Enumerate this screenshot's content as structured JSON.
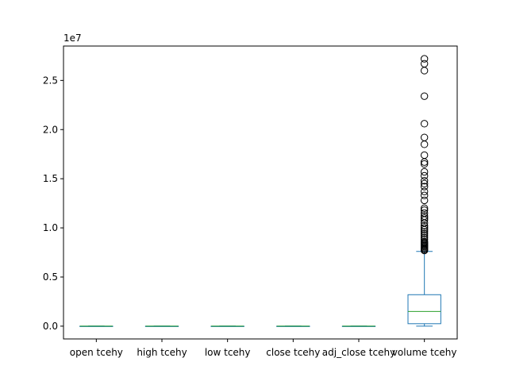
{
  "chart_data": {
    "type": "box",
    "title": "",
    "xlabel": "",
    "ylabel": "",
    "ylim": [
      -0.13,
      2.85
    ],
    "y_scale_label": "1e7",
    "y_ticks": [
      0.0,
      0.5,
      1.0,
      1.5,
      2.0,
      2.5
    ],
    "y_tick_labels": [
      "0.0",
      "0.5",
      "1.0",
      "1.5",
      "2.0",
      "2.5"
    ],
    "categories": [
      "open tcehy",
      "high tcehy",
      "low tcehy",
      "close tcehy",
      "adj_close tcehy",
      "volume tcehy"
    ],
    "series": [
      {
        "whislo": 0,
        "q1": 0,
        "median": 0,
        "q3": 0,
        "whishi": 0,
        "fliers": []
      },
      {
        "whislo": 0,
        "q1": 0,
        "median": 0,
        "q3": 0,
        "whishi": 0,
        "fliers": []
      },
      {
        "whislo": 0,
        "q1": 0,
        "median": 0,
        "q3": 0,
        "whishi": 0,
        "fliers": []
      },
      {
        "whislo": 0,
        "q1": 0,
        "median": 0,
        "q3": 0,
        "whishi": 0,
        "fliers": []
      },
      {
        "whislo": 0,
        "q1": 0,
        "median": 0,
        "q3": 0,
        "whishi": 0,
        "fliers": []
      },
      {
        "whislo": 0.0,
        "q1": 0.025,
        "median": 0.15,
        "q3": 0.32,
        "whishi": 0.76,
        "fliers": [
          2.72,
          2.67,
          2.6,
          2.34,
          2.06,
          1.92,
          1.85,
          1.74,
          1.67,
          1.65,
          1.57,
          1.53,
          1.48,
          1.45,
          1.42,
          1.37,
          1.33,
          1.28,
          1.2,
          1.18,
          1.15,
          1.12,
          1.1,
          1.08,
          1.05,
          1.02,
          1.0,
          0.98,
          0.96,
          0.94,
          0.92,
          0.9,
          0.88,
          0.86,
          0.85,
          0.84,
          0.83,
          0.82,
          0.81,
          0.8,
          0.79,
          0.78,
          0.77
        ]
      }
    ],
    "colors": {
      "box": "#1f77b4",
      "median": "#2ca02c",
      "flier": "#000000",
      "axis": "#000000"
    }
  }
}
